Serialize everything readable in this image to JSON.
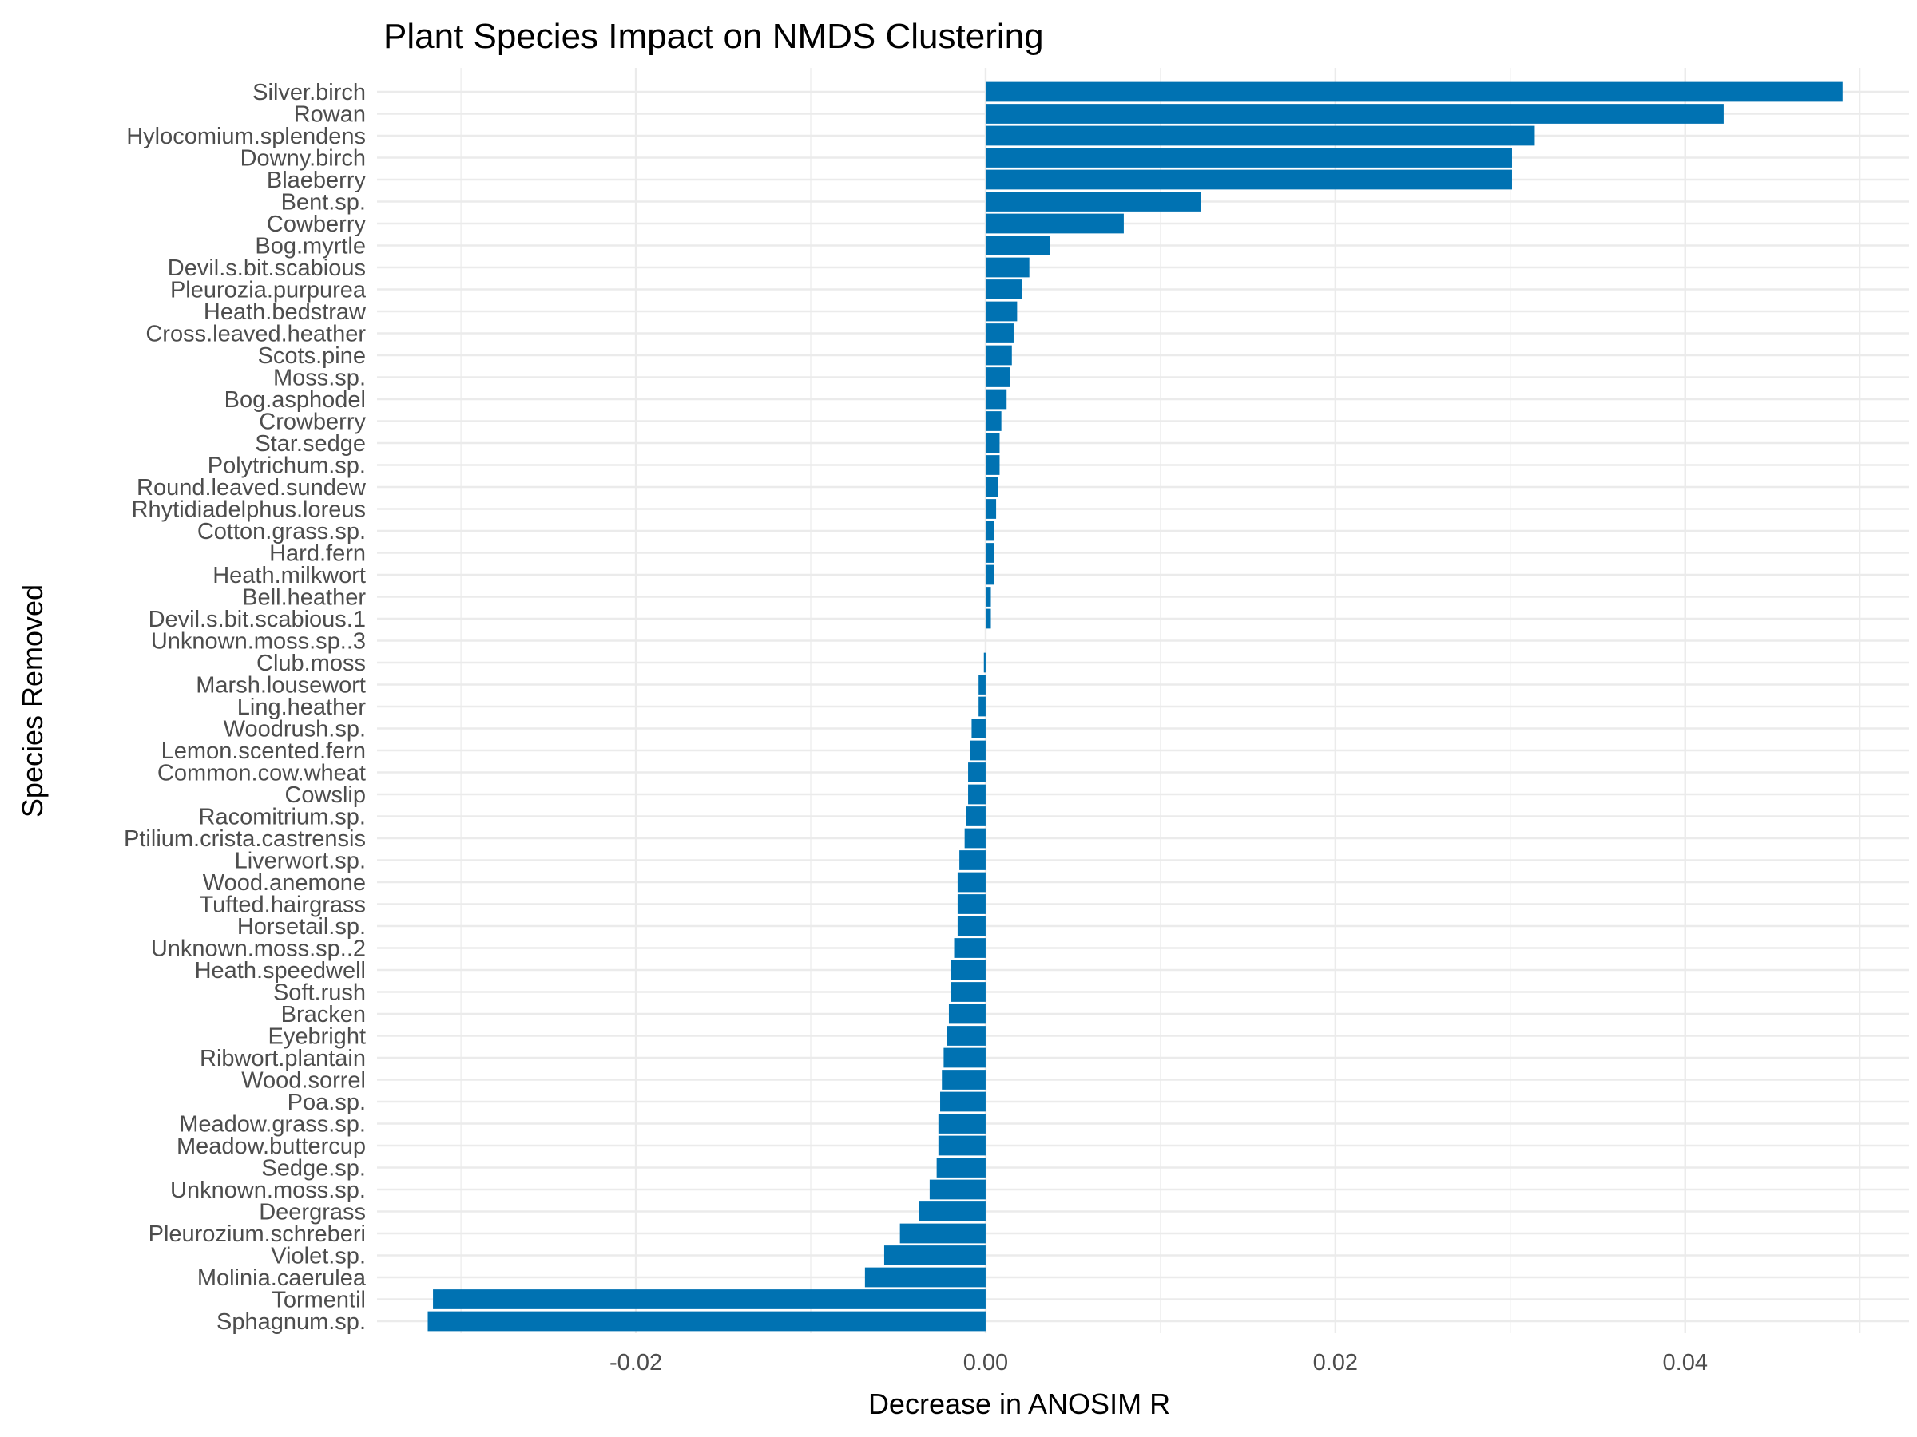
{
  "chart_data": {
    "type": "bar",
    "orientation": "horizontal",
    "title": "Plant Species Impact on NMDS Clustering",
    "xlabel": "Decrease in ANOSIM R",
    "ylabel": "Species Removed",
    "xlim": [
      -0.0348,
      0.0528
    ],
    "xticks": [
      -0.02,
      0.0,
      0.02,
      0.04
    ],
    "xtick_labels": [
      "-0.02",
      "0.00",
      "0.02",
      "0.04"
    ],
    "grid": true,
    "legend": "none",
    "bar_color": "#0072b2",
    "categories": [
      "Silver.birch",
      "Rowan",
      "Hylocomium.splendens",
      "Downy.birch",
      "Blaeberry",
      "Bent.sp.",
      "Cowberry",
      "Bog.myrtle",
      "Devil.s.bit.scabious",
      "Pleurozia.purpurea",
      "Heath.bedstraw",
      "Cross.leaved.heather",
      "Scots.pine",
      "Moss.sp.",
      "Bog.asphodel",
      "Crowberry",
      "Star.sedge",
      "Polytrichum.sp.",
      "Round.leaved.sundew",
      "Rhytidiadelphus.loreus",
      "Cotton.grass.sp.",
      "Hard.fern",
      "Heath.milkwort",
      "Bell.heather",
      "Devil.s.bit.scabious.1",
      "Unknown.moss.sp..3",
      "Club.moss",
      "Marsh.lousewort",
      "Ling.heather",
      "Woodrush.sp.",
      "Lemon.scented.fern",
      "Common.cow.wheat",
      "Cowslip",
      "Racomitrium.sp.",
      "Ptilium.crista.castrensis",
      "Liverwort.sp.",
      "Wood.anemone",
      "Tufted.hairgrass",
      "Horsetail.sp.",
      "Unknown.moss.sp..2",
      "Heath.speedwell",
      "Soft.rush",
      "Bracken",
      "Eyebright",
      "Ribwort.plantain",
      "Wood.sorrel",
      "Poa.sp.",
      "Meadow.grass.sp.",
      "Meadow.buttercup",
      "Sedge.sp.",
      "Unknown.moss.sp.",
      "Deergrass",
      "Pleurozium.schreberi",
      "Violet.sp.",
      "Molinia.caerulea",
      "Tormentil",
      "Sphagnum.sp."
    ],
    "values": [
      0.049,
      0.0422,
      0.0314,
      0.0301,
      0.0301,
      0.0123,
      0.0079,
      0.0037,
      0.0025,
      0.0021,
      0.0018,
      0.0016,
      0.0015,
      0.0014,
      0.0012,
      0.0009,
      0.0008,
      0.0008,
      0.0007,
      0.0006,
      0.0005,
      0.0005,
      0.0005,
      0.0003,
      0.0003,
      0.0,
      -0.0001,
      -0.0004,
      -0.0004,
      -0.0008,
      -0.0009,
      -0.001,
      -0.001,
      -0.0011,
      -0.0012,
      -0.0015,
      -0.0016,
      -0.0016,
      -0.0016,
      -0.0018,
      -0.002,
      -0.002,
      -0.0021,
      -0.0022,
      -0.0024,
      -0.0025,
      -0.0026,
      -0.0027,
      -0.0027,
      -0.0028,
      -0.0032,
      -0.0038,
      -0.0049,
      -0.0058,
      -0.0069,
      -0.0316,
      -0.0319
    ]
  }
}
